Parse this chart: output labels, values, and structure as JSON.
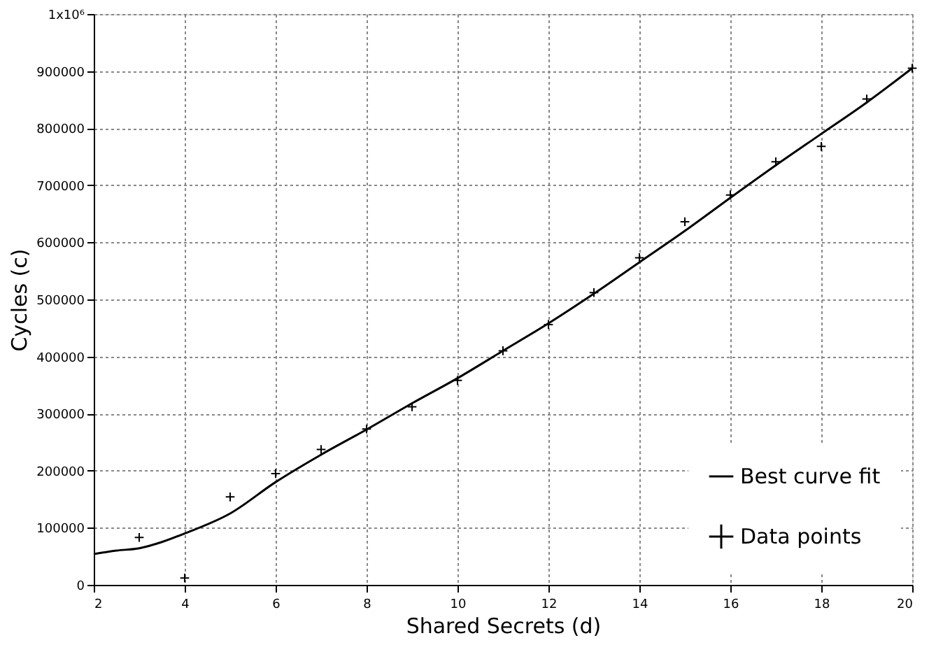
{
  "chart_data": {
    "type": "scatter",
    "xlabel": "Shared Secrets (d)",
    "ylabel": "Cycles (c)",
    "xlim": [
      2,
      20
    ],
    "xticks": [
      2,
      4,
      6,
      8,
      10,
      12,
      14,
      16,
      18,
      20
    ],
    "ylim": [
      0,
      1000000
    ],
    "yticks": [
      0,
      100000,
      200000,
      300000,
      400000,
      500000,
      600000,
      700000,
      800000,
      900000,
      {
        "value": 1000000,
        "label": "1x10⁶"
      }
    ],
    "grid": true,
    "legend": "bottom right",
    "series": [
      {
        "name": "Best curve fit",
        "type": "line",
        "color": "#000000",
        "line_style": "solid",
        "marker": "none",
        "x": [
          2,
          2.5,
          3,
          3.5,
          4,
          5,
          6,
          7,
          8,
          9,
          10,
          11,
          12,
          13,
          14,
          15,
          16,
          17,
          18,
          19,
          20
        ],
        "values": [
          54000,
          60000,
          64000,
          75000,
          90000,
          125000,
          180000,
          228000,
          272000,
          318000,
          362000,
          410000,
          458000,
          510000,
          565000,
          620000,
          678000,
          735000,
          790000,
          845000,
          905000
        ]
      },
      {
        "name": "Data points",
        "type": "scatter",
        "color": "#000000",
        "marker": "cross",
        "x": [
          3,
          4,
          5,
          6,
          7,
          8,
          9,
          10,
          11,
          12,
          13,
          14,
          15,
          16,
          17,
          18,
          19,
          20
        ],
        "values": [
          83000,
          12000,
          154000,
          195000,
          237000,
          273000,
          312000,
          358000,
          410000,
          456000,
          512000,
          573000,
          636000,
          683000,
          741000,
          768000,
          851000,
          905000
        ]
      }
    ]
  }
}
